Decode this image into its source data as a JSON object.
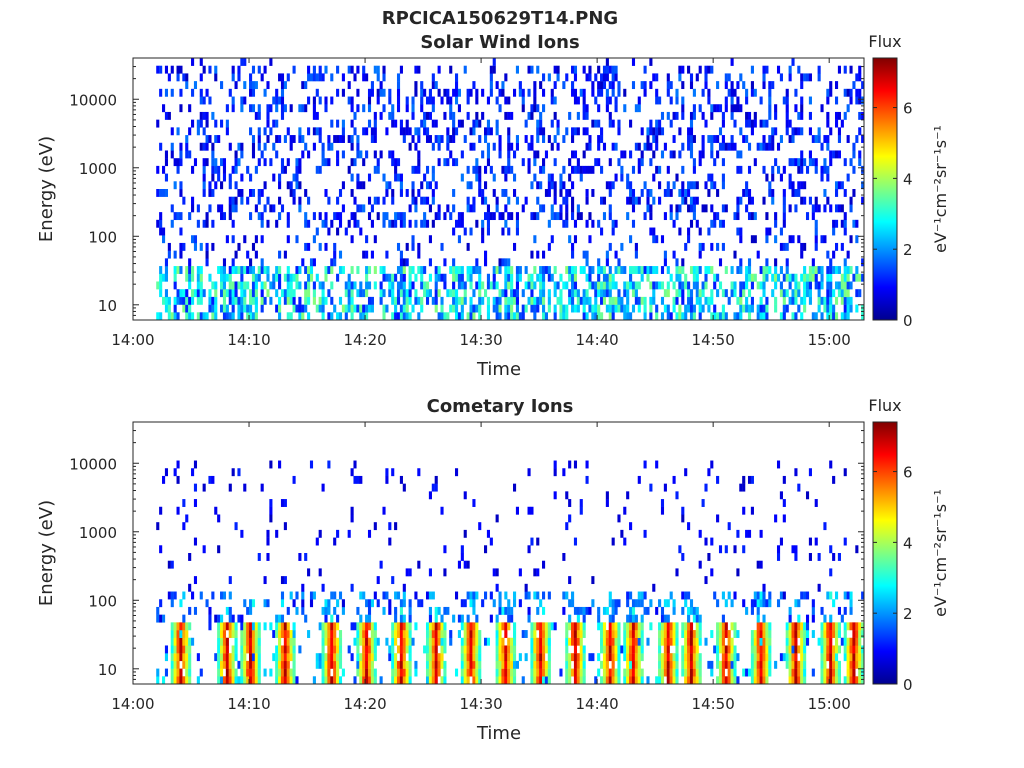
{
  "figure": {
    "title": "RPCICA150629T14.PNG"
  },
  "colormap": [
    "#00008f",
    "#0000ff",
    "#0080ff",
    "#00ffff",
    "#80ff80",
    "#ffff00",
    "#ff8000",
    "#ff0000",
    "#800000"
  ],
  "chart_data": [
    {
      "type": "heatmap",
      "title": "Solar Wind Ions",
      "xlabel": "Time",
      "ylabel": "Energy (eV)",
      "x_range": [
        "14:00",
        "15:03"
      ],
      "x_ticks": [
        "14:00",
        "14:10",
        "14:20",
        "14:30",
        "14:40",
        "14:50",
        "15:00"
      ],
      "y_scale": "log",
      "y_range": [
        6,
        40000
      ],
      "y_ticks": [
        "10",
        "100",
        "1000",
        "10000"
      ],
      "colorbar": {
        "title": "Flux",
        "label": "eV⁻¹cm⁻²sr⁻¹s⁻¹",
        "range": [
          0,
          7.4
        ],
        "ticks": [
          "0",
          "2",
          "4",
          "6"
        ]
      },
      "data_start": "14:02",
      "pattern": "sparse blue counts (flux 0.5-2) scattered across 100 eV-30 keV, denser cyan/light-green columns (flux 2-4) below 40 eV"
    },
    {
      "type": "heatmap",
      "title": "Cometary Ions",
      "xlabel": "Time",
      "ylabel": "Energy (eV)",
      "x_range": [
        "14:00",
        "15:03"
      ],
      "x_ticks": [
        "14:00",
        "14:10",
        "14:20",
        "14:30",
        "14:40",
        "14:50",
        "15:00"
      ],
      "y_scale": "log",
      "y_range": [
        6,
        40000
      ],
      "y_ticks": [
        "10",
        "100",
        "1000",
        "10000"
      ],
      "colorbar": {
        "title": "Flux",
        "label": "eV⁻¹cm⁻²sr⁻¹s⁻¹",
        "range": [
          0,
          7.4
        ],
        "ticks": [
          "0",
          "2",
          "4",
          "6"
        ]
      },
      "data_start": "14:02",
      "bursts": [
        "14:04",
        "14:08",
        "14:10",
        "14:13",
        "14:17",
        "14:20",
        "14:23",
        "14:26",
        "14:29",
        "14:32",
        "14:35",
        "14:38",
        "14:41",
        "14:43",
        "14:46",
        "14:48",
        "14:51",
        "14:54",
        "14:57",
        "15:00",
        "15:02"
      ],
      "pattern": "periodic bursts of high flux (5-7, yellow-red) at 10-40 eV, sparse blue counts at higher energies up to 10 keV"
    }
  ]
}
